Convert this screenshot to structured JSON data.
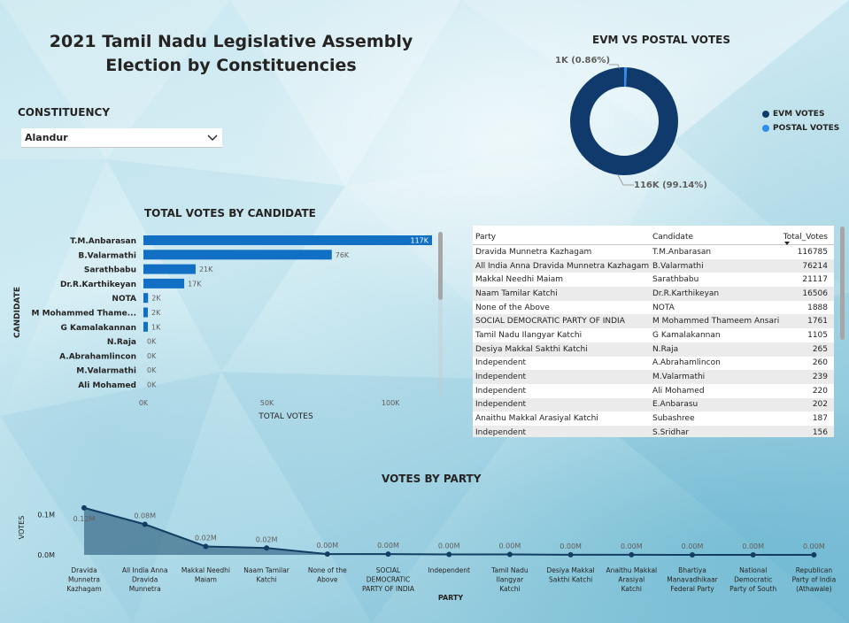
{
  "page": {
    "title": "2021 Tamil Nadu Legislative Assembly Election by Constituencies"
  },
  "slicer": {
    "label": "CONSTITUENCY",
    "selected": "Alandur",
    "icon": "chevron-down-icon"
  },
  "colors": {
    "bar": "#1170c4",
    "evm": "#0f3a6b",
    "postal": "#2b8ef0",
    "line": "#123e63",
    "area": "#1a4a6e"
  },
  "donut": {
    "title": "EVM VS POSTAL VOTES",
    "legend": [
      {
        "label": "EVM VOTES",
        "color": "#0f3a6b"
      },
      {
        "label": "POSTAL VOTES",
        "color": "#2b8ef0"
      }
    ],
    "label_postal": "1K (0.86%)",
    "label_evm": "116K (99.14%)"
  },
  "bar_chart": {
    "title": "TOTAL VOTES BY CANDIDATE",
    "ylabel": "CANDIDATE",
    "xlabel": "TOTAL VOTES",
    "x_ticks": [
      "0K",
      "50K",
      "100K"
    ]
  },
  "line_chart": {
    "title": "VOTES BY PARTY",
    "ylabel": "VOTES",
    "xlabel": "PARTY",
    "y_ticks": [
      "0.1M",
      "0.0M"
    ]
  },
  "table": {
    "headers": [
      "Party",
      "Candidate",
      "Total_Votes"
    ],
    "sort_icon": "sort-descending-icon",
    "rows": [
      [
        "Dravida Munnetra Kazhagam",
        "T.M.Anbarasan",
        "116785"
      ],
      [
        "All India Anna Dravida Munnetra Kazhagam",
        "B.Valarmathi",
        "76214"
      ],
      [
        "Makkal Needhi Maiam",
        "Sarathbabu",
        "21117"
      ],
      [
        "Naam Tamilar Katchi",
        "Dr.R.Karthikeyan",
        "16506"
      ],
      [
        "None of the Above",
        "NOTA",
        "1888"
      ],
      [
        "SOCIAL DEMOCRATIC PARTY OF INDIA",
        "M Mohammed Thameem Ansari",
        "1761"
      ],
      [
        "Tamil Nadu Ilangyar Katchi",
        "G Kamalakannan",
        "1105"
      ],
      [
        "Desiya Makkal Sakthi Katchi",
        "N.Raja",
        "265"
      ],
      [
        "Independent",
        "A.Abrahamlincon",
        "260"
      ],
      [
        "Independent",
        "M.Valarmathi",
        "239"
      ],
      [
        "Independent",
        "Ali Mohamed",
        "220"
      ],
      [
        "Independent",
        "E.Anbarasu",
        "202"
      ],
      [
        "Anaithu Makkal Arasiyal Katchi",
        "Subashree",
        "187"
      ],
      [
        "Independent",
        "S.Sridhar",
        "156"
      ]
    ]
  },
  "chart_data": [
    {
      "type": "bar",
      "title": "TOTAL VOTES BY CANDIDATE",
      "xlabel": "TOTAL VOTES",
      "ylabel": "CANDIDATE",
      "xlim": [
        0,
        120000
      ],
      "grid": false,
      "categories": [
        "T.M.Anbarasan",
        "B.Valarmathi",
        "Sarathbabu",
        "Dr.R.Karthikeyan",
        "NOTA",
        "M Mohammed Thame...",
        "G Kamalakannan",
        "N.Raja",
        "A.Abrahamlincon",
        "M.Valarmathi",
        "Ali Mohamed"
      ],
      "values": [
        116785,
        76214,
        21117,
        16506,
        1888,
        1761,
        1105,
        265,
        260,
        239,
        220
      ],
      "data_labels": [
        "117K",
        "76K",
        "21K",
        "17K",
        "2K",
        "2K",
        "1K",
        "0K",
        "0K",
        "0K",
        "0K"
      ]
    },
    {
      "type": "pie",
      "title": "EVM VS POSTAL VOTES",
      "categories": [
        "EVM VOTES",
        "POSTAL VOTES"
      ],
      "values": [
        116000,
        1000
      ],
      "data_labels": [
        "116K (99.14%)",
        "1K (0.86%)"
      ],
      "legend": "right"
    },
    {
      "type": "line",
      "title": "VOTES BY PARTY",
      "xlabel": "PARTY",
      "ylabel": "VOTES",
      "ylim": [
        0,
        0.13
      ],
      "categories": [
        "Dravida Munnetra Kazhagam",
        "All India Anna Dravida Munnetra Kaz...",
        "Makkal Needhi Maiam",
        "Naam Tamilar Katchi",
        "None of the Above",
        "SOCIAL DEMOCRATIC PARTY OF INDIA",
        "Independent",
        "Tamil Nadu Ilangyar Katchi",
        "Desiya Makkal Sakthi Katchi",
        "Anaithu Makkal Arasiyal Katchi",
        "Bhartiya Manavadhikaar Federal Party",
        "National Democratic Party of South ...",
        "Republican Party of India (Athawale)"
      ],
      "values": [
        0.117,
        0.076,
        0.021,
        0.017,
        0.002,
        0.002,
        0.001,
        0.001,
        0.0003,
        0.0002,
        0.0001,
        0.0001,
        0.0001
      ],
      "data_labels": [
        "0.12M",
        "0.08M",
        "0.02M",
        "0.02M",
        "0.00M",
        "0.00M",
        "0.00M",
        "0.00M",
        "0.00M",
        "0.00M",
        "0.00M",
        "0.00M",
        "0.00M"
      ]
    }
  ]
}
